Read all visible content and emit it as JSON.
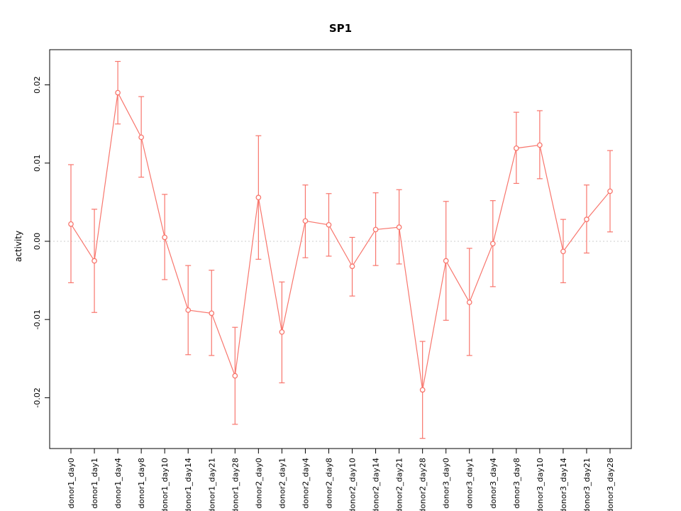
{
  "page": {
    "title": "SP1"
  },
  "chart_data": {
    "type": "line",
    "title": "SP1",
    "xlabel": "",
    "ylabel": "activity",
    "legend": "none",
    "grid": "dotted horizontal line at y=0 only",
    "point_style": "open-circle",
    "error_bars": true,
    "series_color": "#f8766d",
    "zero_line_color": "#cccccc",
    "ylim": [
      -0.0265,
      0.0245
    ],
    "yticks": [
      -0.02,
      -0.01,
      0.0,
      0.01,
      0.02
    ],
    "categories": [
      "donor1_day0",
      "donor1_day1",
      "donor1_day4",
      "donor1_day8",
      "donor1_day10",
      "donor1_day14",
      "donor1_day21",
      "donor1_day28",
      "donor2_day0",
      "donor2_day1",
      "donor2_day4",
      "donor2_day8",
      "donor2_day10",
      "donor2_day14",
      "donor2_day21",
      "donor2_day28",
      "donor3_day0",
      "donor3_day1",
      "donor3_day4",
      "donor3_day8",
      "donor3_day10",
      "donor3_day14",
      "donor3_day21",
      "donor3_day28"
    ],
    "values": [
      0.0022,
      -0.0025,
      0.019,
      0.0133,
      0.0005,
      -0.0088,
      -0.0092,
      -0.0172,
      0.0056,
      -0.0116,
      0.0026,
      0.0021,
      -0.0032,
      0.0015,
      0.0018,
      -0.019,
      -0.0025,
      -0.0078,
      -0.0003,
      0.0119,
      0.0123,
      -0.0013,
      0.0028,
      0.0064
    ],
    "error_low": [
      -0.0053,
      -0.0091,
      0.015,
      0.0082,
      -0.0049,
      -0.0145,
      -0.0146,
      -0.0234,
      -0.0023,
      -0.0181,
      -0.0021,
      -0.0019,
      -0.007,
      -0.0031,
      -0.0029,
      -0.0252,
      -0.0101,
      -0.0146,
      -0.0058,
      0.0074,
      0.008,
      -0.0053,
      -0.0015,
      0.0012
    ],
    "error_high": [
      0.0098,
      0.0041,
      0.023,
      0.0185,
      0.006,
      -0.0031,
      -0.0037,
      -0.011,
      0.0135,
      -0.0052,
      0.0072,
      0.0061,
      0.0005,
      0.0062,
      0.0066,
      -0.0128,
      0.0051,
      -0.0009,
      0.0052,
      0.0165,
      0.0167,
      0.0028,
      0.0072,
      0.0116
    ]
  }
}
